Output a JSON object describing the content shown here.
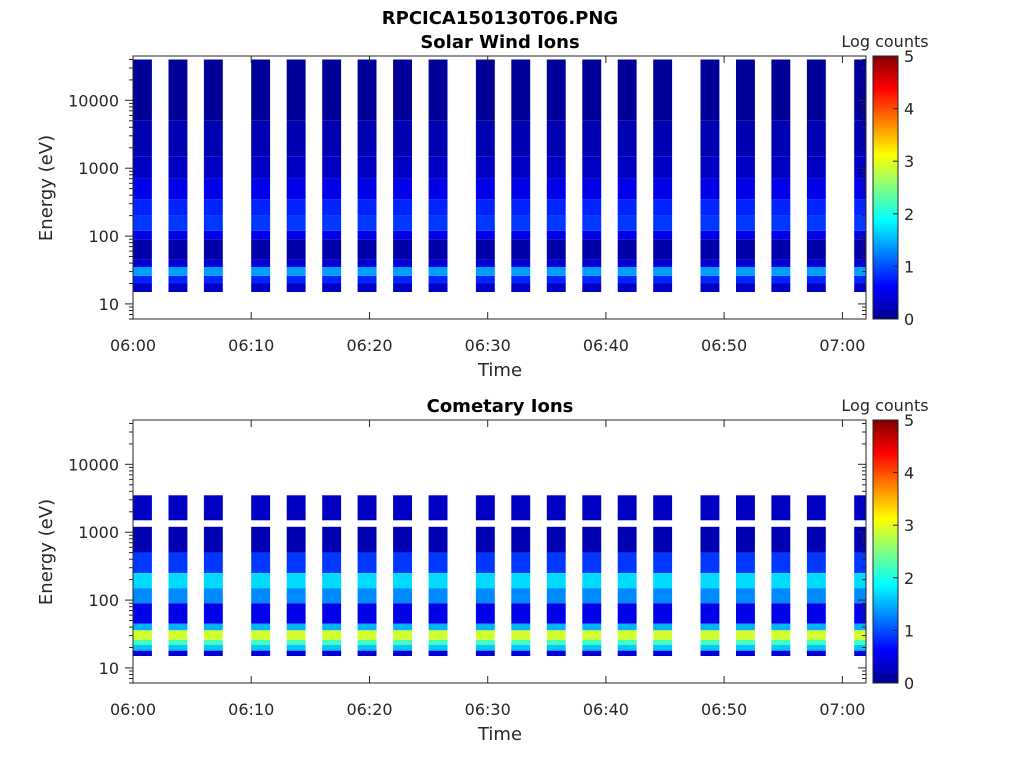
{
  "figure_title": "RPCICA150130T06.PNG",
  "colors": {
    "colormap": [
      "#00008f",
      "#0000ff",
      "#0080ff",
      "#00ffff",
      "#80ff80",
      "#ffff00",
      "#ff8000",
      "#ff0000",
      "#800000"
    ]
  },
  "chart_data": [
    {
      "type": "heatmap",
      "title": "Solar Wind Ions",
      "xlabel": "Time",
      "ylabel": "Energy (eV)",
      "x_ticks": [
        "06:00",
        "06:10",
        "06:20",
        "06:30",
        "06:40",
        "06:50",
        "07:00"
      ],
      "y_ticks": [
        "10",
        "100",
        "1000",
        "10000"
      ],
      "y_scale": "log",
      "xlim": [
        "06:00",
        "07:02"
      ],
      "ylim": [
        6,
        45000
      ],
      "colorbar": {
        "label": "Log counts",
        "ticks": [
          "0",
          "1",
          "2",
          "3",
          "4",
          "5"
        ],
        "range": [
          0,
          5
        ]
      },
      "sweep_times": [
        "06:00",
        "06:03",
        "06:06",
        "06:10",
        "06:13",
        "06:16",
        "06:19",
        "06:22",
        "06:25",
        "06:29",
        "06:32",
        "06:35",
        "06:38",
        "06:41",
        "06:44",
        "06:48",
        "06:51",
        "06:54",
        "06:57",
        "07:01"
      ],
      "profile": [
        {
          "energy_range": [
            15,
            20
          ],
          "log_counts": 0.3
        },
        {
          "energy_range": [
            20,
            26
          ],
          "log_counts": 0.8
        },
        {
          "energy_range": [
            26,
            35
          ],
          "log_counts": 1.4
        },
        {
          "energy_range": [
            35,
            45
          ],
          "log_counts": 0.4
        },
        {
          "energy_range": [
            45,
            90
          ],
          "log_counts": 0.15
        },
        {
          "energy_range": [
            90,
            120
          ],
          "log_counts": 0.5
        },
        {
          "energy_range": [
            120,
            200
          ],
          "log_counts": 0.9
        },
        {
          "energy_range": [
            200,
            350
          ],
          "log_counts": 0.8
        },
        {
          "energy_range": [
            350,
            700
          ],
          "log_counts": 0.5
        },
        {
          "energy_range": [
            700,
            1500
          ],
          "log_counts": 0.3
        },
        {
          "energy_range": [
            1500,
            5000
          ],
          "log_counts": 0.2
        },
        {
          "energy_range": [
            5000,
            40000
          ],
          "log_counts": 0.05
        }
      ]
    },
    {
      "type": "heatmap",
      "title": "Cometary Ions",
      "xlabel": "Time",
      "ylabel": "Energy (eV)",
      "x_ticks": [
        "06:00",
        "06:10",
        "06:20",
        "06:30",
        "06:40",
        "06:50",
        "07:00"
      ],
      "y_ticks": [
        "10",
        "100",
        "1000",
        "10000"
      ],
      "y_scale": "log",
      "xlim": [
        "06:00",
        "07:02"
      ],
      "ylim": [
        6,
        45000
      ],
      "colorbar": {
        "label": "Log counts",
        "ticks": [
          "0",
          "1",
          "2",
          "3",
          "4",
          "5"
        ],
        "range": [
          0,
          5
        ]
      },
      "sweep_times": [
        "06:00",
        "06:03",
        "06:06",
        "06:10",
        "06:13",
        "06:16",
        "06:19",
        "06:22",
        "06:25",
        "06:29",
        "06:32",
        "06:35",
        "06:38",
        "06:41",
        "06:44",
        "06:48",
        "06:51",
        "06:54",
        "06:57",
        "07:01"
      ],
      "profile": [
        {
          "energy_range": [
            15,
            18
          ],
          "log_counts": 0.4
        },
        {
          "energy_range": [
            18,
            22
          ],
          "log_counts": 1.6
        },
        {
          "energy_range": [
            22,
            26
          ],
          "log_counts": 2.2
        },
        {
          "energy_range": [
            26,
            36
          ],
          "log_counts": 2.9
        },
        {
          "energy_range": [
            36,
            45
          ],
          "log_counts": 1.5
        },
        {
          "energy_range": [
            45,
            90
          ],
          "log_counts": 0.5
        },
        {
          "energy_range": [
            90,
            150
          ],
          "log_counts": 1.3
        },
        {
          "energy_range": [
            150,
            250
          ],
          "log_counts": 1.7
        },
        {
          "energy_range": [
            250,
            500
          ],
          "log_counts": 0.9
        },
        {
          "energy_range": [
            500,
            1200
          ],
          "log_counts": 0.2
        },
        {
          "energy_range": [
            1500,
            3500
          ],
          "log_counts": 0.3
        }
      ]
    }
  ]
}
